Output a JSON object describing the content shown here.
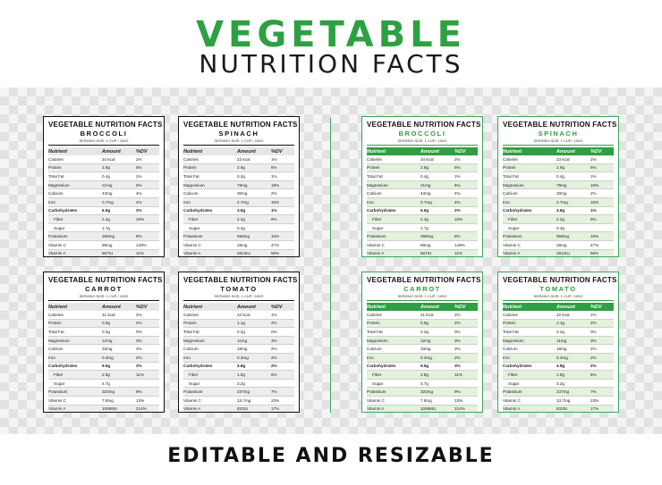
{
  "title_line1": "VEGETABLE",
  "title_line2": "NUTRITION FACTS",
  "footer": "EDITABLE AND RESIZABLE",
  "label_header": "VEGETABLE NUTRITION FACTS",
  "serving": "SERVING SIZE: 1 CUP / 100G",
  "columns": [
    "Nutrient",
    "Amount",
    "%DV"
  ],
  "colors": {
    "green": "#2ea043",
    "black": "#111111"
  },
  "labels": [
    {
      "name": "BROCCOLI",
      "rows": [
        [
          "Calories",
          "34 kcal",
          "2%"
        ],
        [
          "Protein",
          "2.8g",
          "6%"
        ],
        [
          "Total Fat",
          "0.4g",
          "1%"
        ],
        [
          "Magnesium",
          "21mg",
          "5%"
        ],
        [
          "Calcium",
          "43mg",
          "4%"
        ],
        [
          "Iron",
          "0.7mg",
          "4%"
        ],
        [
          "Carbohydrates",
          "6.6g",
          "2%"
        ],
        [
          "Fiber",
          "2.4g",
          "10%"
        ],
        [
          "Sugar",
          "1.7g",
          ""
        ],
        [
          "Potassium",
          "288mg",
          "8%"
        ],
        [
          "Vitamin C",
          "89mg",
          "149%"
        ],
        [
          "Vitamin A",
          "567IU",
          "11%"
        ]
      ]
    },
    {
      "name": "SPINACH",
      "rows": [
        [
          "Calories",
          "23 kcal",
          "1%"
        ],
        [
          "Protein",
          "2.9g",
          "6%"
        ],
        [
          "Total Fat",
          "0.4g",
          "1%"
        ],
        [
          "Magnesium",
          "79mg",
          "19%"
        ],
        [
          "Calcium",
          "30mg",
          "2%"
        ],
        [
          "Iron",
          "2.7mg",
          "15%"
        ],
        [
          "Carbohydrates",
          "3.6g",
          "1%"
        ],
        [
          "Fiber",
          "2.2g",
          "9%"
        ],
        [
          "Sugar",
          "0.4g",
          ""
        ],
        [
          "Potassium",
          "558mg",
          "16%"
        ],
        [
          "Vitamin C",
          "28mg",
          "47%"
        ],
        [
          "Vitamin A",
          "2813IU",
          "56%"
        ]
      ]
    },
    {
      "name": "CARROT",
      "rows": [
        [
          "Calories",
          "41 kcal",
          "2%"
        ],
        [
          "Protein",
          "0.9g",
          "2%"
        ],
        [
          "Total Fat",
          "0.2g",
          "0%"
        ],
        [
          "Magnesium",
          "12mg",
          "3%"
        ],
        [
          "Calcium",
          "33mg",
          "3%"
        ],
        [
          "Iron",
          "0.3mg",
          "2%"
        ],
        [
          "Carbohydrates",
          "9.6g",
          "3%"
        ],
        [
          "Fiber",
          "2.8g",
          "11%"
        ],
        [
          "Sugar",
          "4.7g",
          ""
        ],
        [
          "Potassium",
          "320mg",
          "9%"
        ],
        [
          "Vitamin C",
          "7.6mg",
          "13%"
        ],
        [
          "Vitamin A",
          "10698IU",
          "214%"
        ]
      ]
    },
    {
      "name": "TOMATO",
      "rows": [
        [
          "Calories",
          "22 kcal",
          "1%"
        ],
        [
          "Protein",
          "1.1g",
          "2%"
        ],
        [
          "Total Fat",
          "0.2g",
          "0%"
        ],
        [
          "Magnesium",
          "11mg",
          "3%"
        ],
        [
          "Calcium",
          "18mg",
          "2%"
        ],
        [
          "Iron",
          "0.3mg",
          "2%"
        ],
        [
          "Carbohydrates",
          "4.8g",
          "2%"
        ],
        [
          "Fiber",
          "1.5g",
          "6%"
        ],
        [
          "Sugar",
          "3.2g",
          ""
        ],
        [
          "Potassium",
          "237mg",
          "7%"
        ],
        [
          "Vitamin C",
          "13.7mg",
          "23%"
        ],
        [
          "Vitamin A",
          "833IU",
          "17%"
        ]
      ]
    }
  ]
}
